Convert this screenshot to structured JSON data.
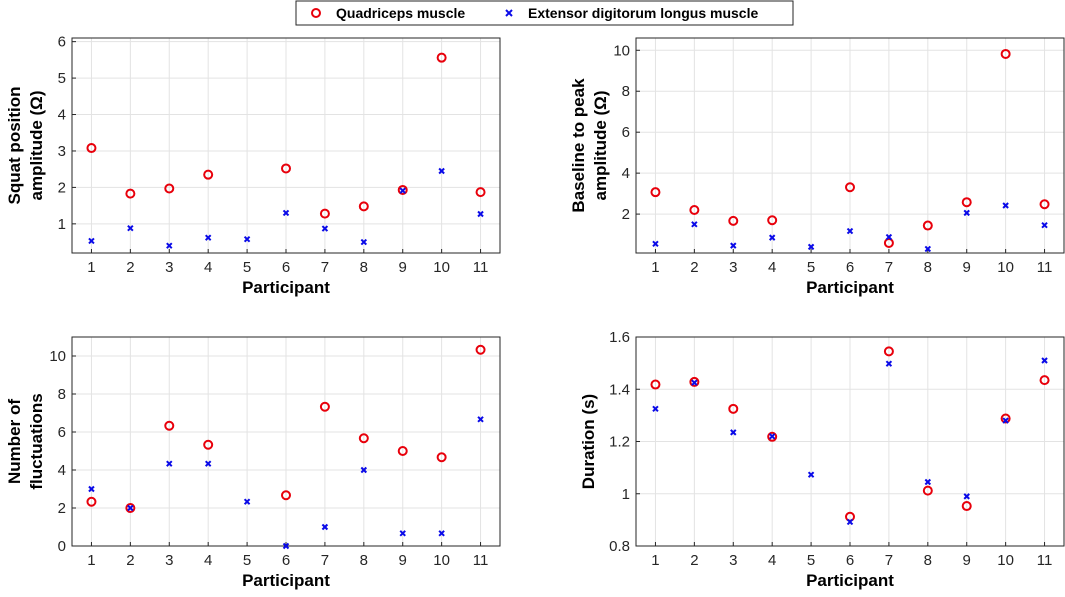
{
  "legend": {
    "series_a": "Quadriceps muscle",
    "series_b": "Extensor digitorum longus muscle",
    "colors": {
      "series_a": "#e8000b",
      "series_b": "#0a0ae8"
    }
  },
  "chart_data": [
    {
      "type": "scatter",
      "id": "squat",
      "title": "",
      "xlabel": "Participant",
      "ylabel": [
        "Squat position",
        "amplitude (Ω)"
      ],
      "x": [
        1,
        2,
        3,
        4,
        5,
        6,
        7,
        8,
        9,
        10,
        11
      ],
      "xticks": [
        "1",
        "2",
        "3",
        "4",
        "5",
        "6",
        "7",
        "8",
        "9",
        "10",
        "11"
      ],
      "yticks": [
        "1",
        "2",
        "3",
        "4",
        "5",
        "6"
      ],
      "ytick_values": [
        1,
        2,
        3,
        4,
        5,
        6
      ],
      "ylim": [
        0.2,
        6.1
      ],
      "series": [
        {
          "name": "Quadriceps muscle",
          "values": [
            3.08,
            1.83,
            1.97,
            2.35,
            null,
            2.52,
            1.28,
            1.48,
            1.93,
            5.56,
            1.87
          ]
        },
        {
          "name": "Extensor digitorum longus muscle",
          "values": [
            0.53,
            0.88,
            0.4,
            0.62,
            0.58,
            1.3,
            0.87,
            0.5,
            1.91,
            2.45,
            1.27
          ]
        }
      ]
    },
    {
      "type": "scatter",
      "id": "baseline",
      "title": "",
      "xlabel": "Participant",
      "ylabel": [
        "Baseline to peak",
        "amplitude (Ω)"
      ],
      "x": [
        1,
        2,
        3,
        4,
        5,
        6,
        7,
        8,
        9,
        10,
        11
      ],
      "xticks": [
        "1",
        "2",
        "3",
        "4",
        "5",
        "6",
        "7",
        "8",
        "9",
        "10",
        "11"
      ],
      "yticks": [
        "2",
        "4",
        "6",
        "8",
        "10"
      ],
      "ytick_values": [
        2,
        4,
        6,
        8,
        10
      ],
      "ylim": [
        0.1,
        10.6
      ],
      "series": [
        {
          "name": "Quadriceps muscle",
          "values": [
            3.07,
            2.2,
            1.67,
            1.7,
            null,
            3.31,
            0.59,
            1.44,
            2.58,
            9.82,
            2.48
          ]
        },
        {
          "name": "Extensor digitorum longus muscle",
          "values": [
            0.55,
            1.5,
            0.46,
            0.85,
            0.4,
            1.17,
            0.88,
            0.3,
            2.06,
            2.42,
            1.46
          ]
        }
      ]
    },
    {
      "type": "scatter",
      "id": "fluctuations",
      "title": "",
      "xlabel": "Participant",
      "ylabel": [
        "Number of",
        "fluctuations"
      ],
      "x": [
        1,
        2,
        3,
        4,
        5,
        6,
        7,
        8,
        9,
        10,
        11
      ],
      "xticks": [
        "1",
        "2",
        "3",
        "4",
        "5",
        "6",
        "7",
        "8",
        "9",
        "10",
        "11"
      ],
      "yticks": [
        "0",
        "2",
        "4",
        "6",
        "8",
        "10"
      ],
      "ytick_values": [
        0,
        2,
        4,
        6,
        8,
        10
      ],
      "ylim": [
        0,
        11
      ],
      "series": [
        {
          "name": "Quadriceps muscle",
          "values": [
            2.33,
            2.0,
            6.33,
            5.33,
            null,
            2.67,
            7.33,
            5.67,
            5.0,
            4.67,
            10.33
          ]
        },
        {
          "name": "Extensor digitorum longus muscle",
          "values": [
            3.0,
            2.0,
            4.33,
            4.33,
            2.33,
            0.0,
            1.0,
            4.0,
            0.67,
            0.67,
            6.67
          ]
        }
      ]
    },
    {
      "type": "scatter",
      "id": "duration",
      "title": "",
      "xlabel": "Participant",
      "ylabel": [
        "Duration (s)"
      ],
      "x": [
        1,
        2,
        3,
        4,
        5,
        6,
        7,
        8,
        9,
        10,
        11
      ],
      "xticks": [
        "1",
        "2",
        "3",
        "4",
        "5",
        "6",
        "7",
        "8",
        "9",
        "10",
        "11"
      ],
      "yticks": [
        "0.8",
        "1",
        "1.2",
        "1.4",
        "1.6"
      ],
      "ytick_values": [
        0.8,
        1.0,
        1.2,
        1.4,
        1.6
      ],
      "ylim": [
        0.8,
        1.6
      ],
      "series": [
        {
          "name": "Quadriceps muscle",
          "values": [
            1.418,
            1.428,
            1.325,
            1.218,
            null,
            0.912,
            1.545,
            1.012,
            0.953,
            1.288,
            1.435
          ]
        },
        {
          "name": "Extensor digitorum longus muscle",
          "values": [
            1.325,
            1.425,
            1.235,
            1.22,
            1.073,
            0.892,
            1.498,
            1.045,
            0.99,
            1.28,
            1.51
          ]
        }
      ]
    }
  ]
}
